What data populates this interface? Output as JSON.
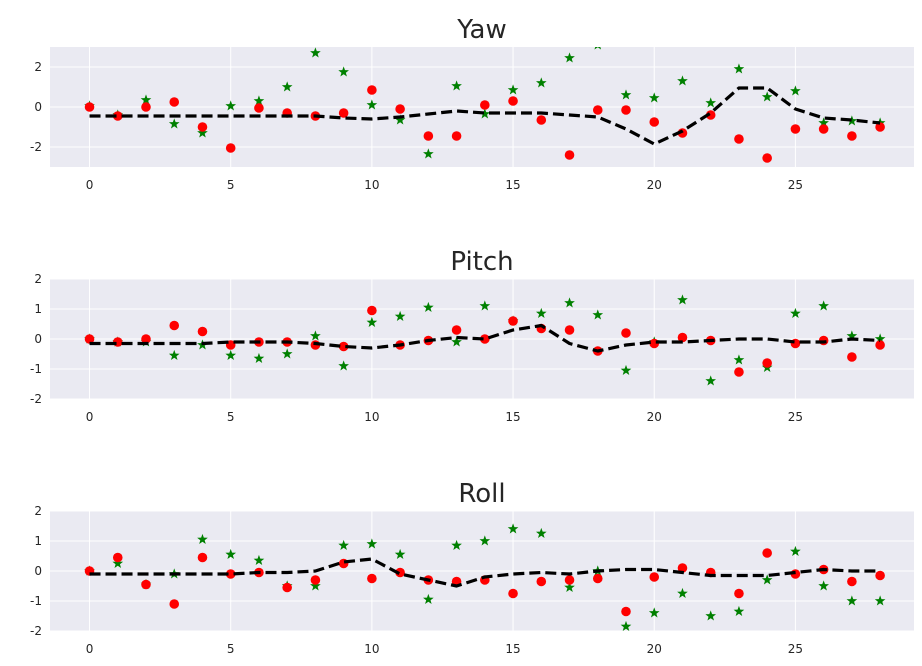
{
  "colors": {
    "axes_background": "#EAEAF2",
    "grid": "#FFFFFF",
    "text": "#262626",
    "green_star": "#008000",
    "red_dot": "#FF0000",
    "trend_line": "#000000"
  },
  "chart_data": [
    {
      "type": "scatter",
      "title": "Yaw",
      "xlabel": "",
      "ylabel": "",
      "xlim": [
        -1.4,
        29.2
      ],
      "ylim": [
        -3.0,
        3.0
      ],
      "xticks": [
        0,
        5,
        10,
        15,
        20,
        25
      ],
      "yticks": [
        -2,
        0,
        2
      ],
      "grid": true,
      "series": [
        {
          "marker": "star",
          "color": "green",
          "x": [
            0,
            1,
            2,
            3,
            4,
            5,
            6,
            7,
            8,
            9,
            10,
            11,
            12,
            13,
            14,
            15,
            16,
            17,
            18,
            19,
            20,
            21,
            22,
            23,
            24,
            25,
            26,
            27,
            28
          ],
          "y": [
            0.05,
            -0.4,
            0.35,
            -0.85,
            -1.3,
            0.05,
            0.3,
            1.0,
            2.7,
            1.75,
            0.1,
            -0.65,
            -2.35,
            1.05,
            -0.35,
            0.85,
            1.2,
            2.45,
            3.1,
            0.6,
            0.45,
            1.3,
            0.2,
            1.9,
            0.5,
            0.8,
            -0.8,
            -0.7,
            -0.8
          ]
        },
        {
          "marker": "circle",
          "color": "red",
          "x": [
            0,
            1,
            2,
            3,
            4,
            5,
            6,
            7,
            8,
            9,
            10,
            11,
            12,
            13,
            14,
            15,
            16,
            17,
            18,
            19,
            20,
            21,
            22,
            23,
            24,
            25,
            26,
            27,
            28
          ],
          "y": [
            0.0,
            -0.45,
            0.0,
            0.25,
            -1.0,
            -2.05,
            -0.05,
            -0.3,
            -0.45,
            -0.3,
            0.85,
            -0.1,
            -1.45,
            -1.45,
            0.1,
            0.3,
            -0.65,
            -2.4,
            -0.15,
            -0.15,
            -0.75,
            -1.3,
            -0.4,
            -1.6,
            -2.55,
            -1.1,
            -1.1,
            -1.45,
            -1.0
          ]
        },
        {
          "marker": "dashed-line",
          "color": "black",
          "x": [
            0,
            1,
            2,
            3,
            4,
            5,
            6,
            7,
            8,
            9,
            10,
            11,
            12,
            13,
            14,
            15,
            16,
            17,
            18,
            19,
            20,
            21,
            22,
            23,
            24,
            25,
            26,
            27,
            28
          ],
          "y": [
            -0.45,
            -0.45,
            -0.45,
            -0.45,
            -0.45,
            -0.45,
            -0.45,
            -0.45,
            -0.45,
            -0.55,
            -0.6,
            -0.5,
            -0.35,
            -0.2,
            -0.3,
            -0.3,
            -0.3,
            -0.4,
            -0.5,
            -1.1,
            -1.85,
            -1.2,
            -0.3,
            0.95,
            0.95,
            -0.1,
            -0.55,
            -0.65,
            -0.8
          ]
        }
      ]
    },
    {
      "type": "scatter",
      "title": "Pitch",
      "xlabel": "",
      "ylabel": "",
      "xlim": [
        -1.4,
        29.2
      ],
      "ylim": [
        -2.0,
        2.0
      ],
      "xticks": [
        0,
        5,
        10,
        15,
        20,
        25
      ],
      "yticks": [
        -2,
        -1,
        0,
        1,
        2
      ],
      "grid": true,
      "series": [
        {
          "marker": "star",
          "color": "green",
          "x": [
            0,
            1,
            2,
            3,
            4,
            5,
            6,
            7,
            8,
            9,
            10,
            11,
            12,
            13,
            14,
            15,
            16,
            17,
            18,
            19,
            20,
            21,
            22,
            23,
            24,
            25,
            26,
            27,
            28
          ],
          "y": [
            0.0,
            -0.1,
            -0.1,
            -0.55,
            -0.2,
            -0.55,
            -0.65,
            -0.5,
            0.1,
            -0.9,
            0.55,
            0.75,
            1.05,
            -0.1,
            1.1,
            0.6,
            0.85,
            1.2,
            0.8,
            -1.05,
            -0.1,
            1.3,
            -1.4,
            -0.7,
            -0.95,
            0.85,
            1.1,
            0.1,
            0.0
          ]
        },
        {
          "marker": "circle",
          "color": "red",
          "x": [
            0,
            1,
            2,
            3,
            4,
            5,
            6,
            7,
            8,
            9,
            10,
            11,
            12,
            13,
            14,
            15,
            16,
            17,
            18,
            19,
            20,
            21,
            22,
            23,
            24,
            25,
            26,
            27,
            28
          ],
          "y": [
            0.0,
            -0.1,
            0.0,
            0.45,
            0.25,
            -0.2,
            -0.1,
            -0.1,
            -0.2,
            -0.25,
            0.95,
            -0.2,
            -0.05,
            0.3,
            0.0,
            0.6,
            0.35,
            0.3,
            -0.4,
            0.2,
            -0.15,
            0.05,
            -0.05,
            -1.1,
            -0.8,
            -0.15,
            -0.05,
            -0.6,
            -0.2
          ]
        },
        {
          "marker": "dashed-line",
          "color": "black",
          "x": [
            0,
            1,
            2,
            3,
            4,
            5,
            6,
            7,
            8,
            9,
            10,
            11,
            12,
            13,
            14,
            15,
            16,
            17,
            18,
            19,
            20,
            21,
            22,
            23,
            24,
            25,
            26,
            27,
            28
          ],
          "y": [
            -0.15,
            -0.15,
            -0.15,
            -0.15,
            -0.15,
            -0.1,
            -0.1,
            -0.1,
            -0.15,
            -0.25,
            -0.3,
            -0.2,
            -0.05,
            0.05,
            0.0,
            0.3,
            0.45,
            -0.15,
            -0.4,
            -0.2,
            -0.1,
            -0.1,
            -0.05,
            0.0,
            0.0,
            -0.1,
            -0.1,
            0.0,
            -0.05
          ]
        }
      ]
    },
    {
      "type": "scatter",
      "title": "Roll",
      "xlabel": "",
      "ylabel": "",
      "xlim": [
        -1.4,
        29.2
      ],
      "ylim": [
        -2.0,
        2.0
      ],
      "xticks": [
        0,
        5,
        10,
        15,
        20,
        25
      ],
      "yticks": [
        -2,
        -1,
        0,
        1,
        2
      ],
      "grid": true,
      "series": [
        {
          "marker": "star",
          "color": "green",
          "x": [
            0,
            1,
            2,
            3,
            4,
            5,
            6,
            7,
            8,
            9,
            10,
            11,
            12,
            13,
            14,
            15,
            16,
            17,
            18,
            19,
            20,
            21,
            22,
            23,
            24,
            25,
            26,
            27,
            28
          ],
          "y": [
            0.0,
            0.25,
            -0.45,
            -0.1,
            1.05,
            0.55,
            0.35,
            -0.5,
            -0.5,
            0.85,
            0.9,
            0.55,
            -0.95,
            0.85,
            1.0,
            1.4,
            1.25,
            -0.55,
            0.0,
            -1.85,
            -1.4,
            -0.75,
            -1.5,
            -1.35,
            -0.3,
            0.65,
            -0.5,
            -1.0,
            -1.0
          ]
        },
        {
          "marker": "circle",
          "color": "red",
          "x": [
            0,
            1,
            2,
            3,
            4,
            5,
            6,
            7,
            8,
            9,
            10,
            11,
            12,
            13,
            14,
            15,
            16,
            17,
            18,
            19,
            20,
            21,
            22,
            23,
            24,
            25,
            26,
            27,
            28
          ],
          "y": [
            0.0,
            0.45,
            -0.45,
            -1.1,
            0.45,
            -0.1,
            -0.05,
            -0.55,
            -0.3,
            0.25,
            -0.25,
            -0.05,
            -0.3,
            -0.35,
            -0.3,
            -0.75,
            -0.35,
            -0.3,
            -0.25,
            -1.35,
            -0.2,
            0.1,
            -0.05,
            -0.75,
            0.6,
            -0.1,
            0.05,
            -0.35,
            -0.15
          ]
        },
        {
          "marker": "dashed-line",
          "color": "black",
          "x": [
            0,
            1,
            2,
            3,
            4,
            5,
            6,
            7,
            8,
            9,
            10,
            11,
            12,
            13,
            14,
            15,
            16,
            17,
            18,
            19,
            20,
            21,
            22,
            23,
            24,
            25,
            26,
            27,
            28
          ],
          "y": [
            -0.1,
            -0.1,
            -0.1,
            -0.1,
            -0.1,
            -0.1,
            -0.05,
            -0.05,
            0.0,
            0.3,
            0.4,
            -0.1,
            -0.3,
            -0.5,
            -0.2,
            -0.1,
            -0.05,
            -0.1,
            0.0,
            0.05,
            0.05,
            -0.05,
            -0.15,
            -0.15,
            -0.15,
            -0.05,
            0.05,
            0.0,
            0.0
          ]
        }
      ]
    }
  ]
}
